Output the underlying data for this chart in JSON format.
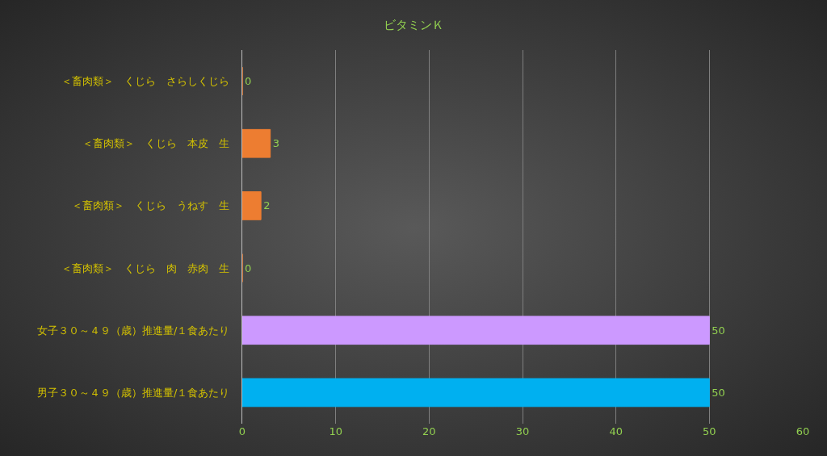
{
  "chart_data": {
    "type": "bar",
    "orientation": "horizontal",
    "title": "ビタミンＫ",
    "categories": [
      "＜畜肉類＞　くじら　さらしくじら",
      "＜畜肉類＞　くじら　本皮　生",
      "＜畜肉類＞　くじら　うねす　生",
      "＜畜肉類＞　くじら　肉　赤肉　生",
      "女子３０～４９（歳）推進量/１食あたり",
      "男子３０～４９（歳）推進量/１食あたり"
    ],
    "values": [
      0,
      3,
      2,
      0,
      50,
      50
    ],
    "colors": [
      "#ed7d31",
      "#ed7d31",
      "#ed7d31",
      "#ed7d31",
      "#cc99ff",
      "#00b0f0"
    ],
    "xlim": [
      0,
      60
    ],
    "xticks": [
      0,
      10,
      20,
      30,
      40,
      50,
      60
    ],
    "grid": "x",
    "data_labels": true,
    "legend": false
  }
}
